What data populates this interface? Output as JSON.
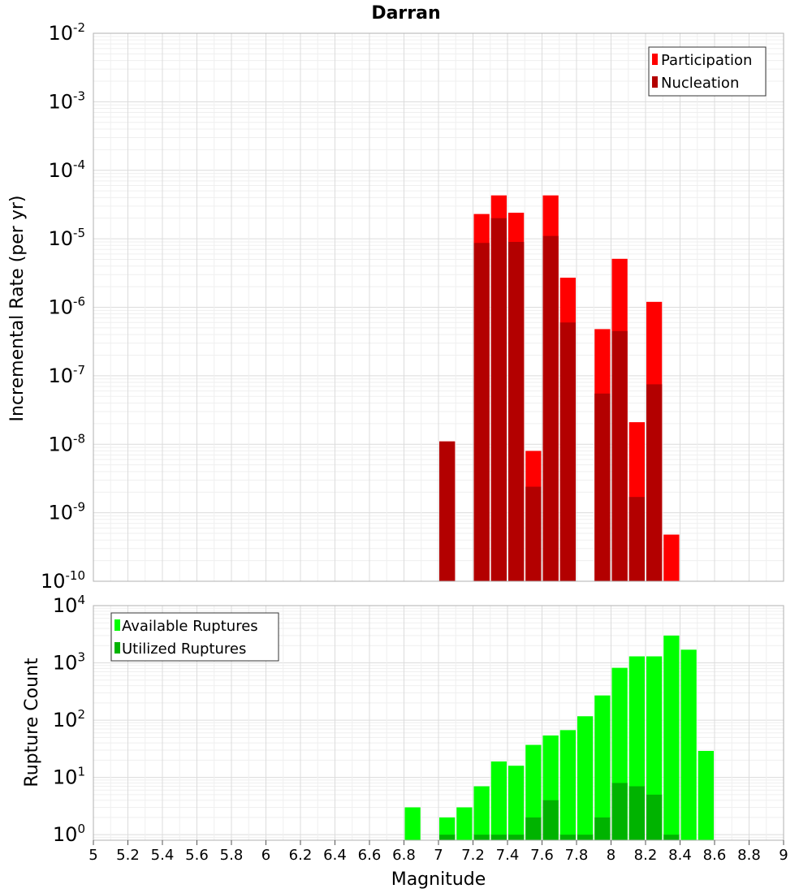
{
  "title": "Darran",
  "colors": {
    "participation": "#ff0000",
    "nucleation": "#b30000",
    "available": "#00ff00",
    "utilized": "#00b300"
  },
  "chart_data": [
    {
      "type": "bar",
      "scale": "log",
      "ylabel": "Incremental Rate (per yr)",
      "ylim": [
        1e-10,
        0.01
      ],
      "ytick_exponents": [
        -2,
        -3,
        -4,
        -5,
        -6,
        -7,
        -8,
        -9,
        -10
      ],
      "xlim": [
        5,
        9
      ],
      "bin_width": 0.1,
      "legend": {
        "position": "top-right",
        "entries": [
          "Participation",
          "Nucleation"
        ]
      },
      "grid": true,
      "series": [
        {
          "name": "Participation",
          "color": "#ff0000",
          "x": [
            7.05,
            7.25,
            7.35,
            7.45,
            7.55,
            7.65,
            7.75,
            7.95,
            8.05,
            8.15,
            8.25,
            8.35
          ],
          "values": [
            1.1e-08,
            2.3e-05,
            4.3e-05,
            2.4e-05,
            8e-09,
            4.3e-05,
            2.7e-06,
            4.8e-07,
            5.1e-06,
            2.1e-08,
            1.2e-06,
            4.8e-10
          ]
        },
        {
          "name": "Nucleation",
          "color": "#b30000",
          "x": [
            7.05,
            7.25,
            7.35,
            7.45,
            7.55,
            7.65,
            7.75,
            7.95,
            8.05,
            8.15,
            8.25
          ],
          "values": [
            1.1e-08,
            8.7e-06,
            2e-05,
            9e-06,
            2.4e-09,
            1.1e-05,
            6e-07,
            5.5e-08,
            4.5e-07,
            1.7e-09,
            7.5e-08
          ]
        }
      ]
    },
    {
      "type": "bar",
      "scale": "log",
      "ylabel": "Rupture Count",
      "xlabel": "Magnitude",
      "ylim": [
        0.8,
        10000
      ],
      "ytick_exponents": [
        4,
        3,
        2,
        1,
        0
      ],
      "xlim": [
        5,
        9
      ],
      "bin_width": 0.1,
      "xticks": [
        "5",
        "5.2",
        "5.4",
        "5.6",
        "5.8",
        "6",
        "6.2",
        "6.4",
        "6.6",
        "6.8",
        "7",
        "7.2",
        "7.4",
        "7.6",
        "7.8",
        "8",
        "8.2",
        "8.4",
        "8.6",
        "8.8",
        "9"
      ],
      "legend": {
        "position": "top-left",
        "entries": [
          "Available Ruptures",
          "Utilized Ruptures"
        ]
      },
      "grid": true,
      "series": [
        {
          "name": "Available Ruptures",
          "color": "#00ff00",
          "x": [
            6.85,
            7.05,
            7.15,
            7.25,
            7.35,
            7.45,
            7.55,
            7.65,
            7.75,
            7.85,
            7.95,
            8.05,
            8.15,
            8.25,
            8.35,
            8.45,
            8.55
          ],
          "values": [
            3,
            2,
            3,
            7,
            19,
            16,
            37,
            54,
            67,
            117,
            270,
            820,
            1300,
            1300,
            3000,
            1700,
            29
          ]
        },
        {
          "name": "Utilized Ruptures",
          "color": "#00b300",
          "x": [
            7.05,
            7.25,
            7.35,
            7.45,
            7.55,
            7.65,
            7.75,
            7.85,
            7.95,
            8.05,
            8.15,
            8.25,
            8.35
          ],
          "values": [
            1,
            1,
            1,
            1,
            2,
            4,
            1,
            1,
            2,
            8,
            7,
            5,
            1
          ]
        }
      ]
    }
  ]
}
